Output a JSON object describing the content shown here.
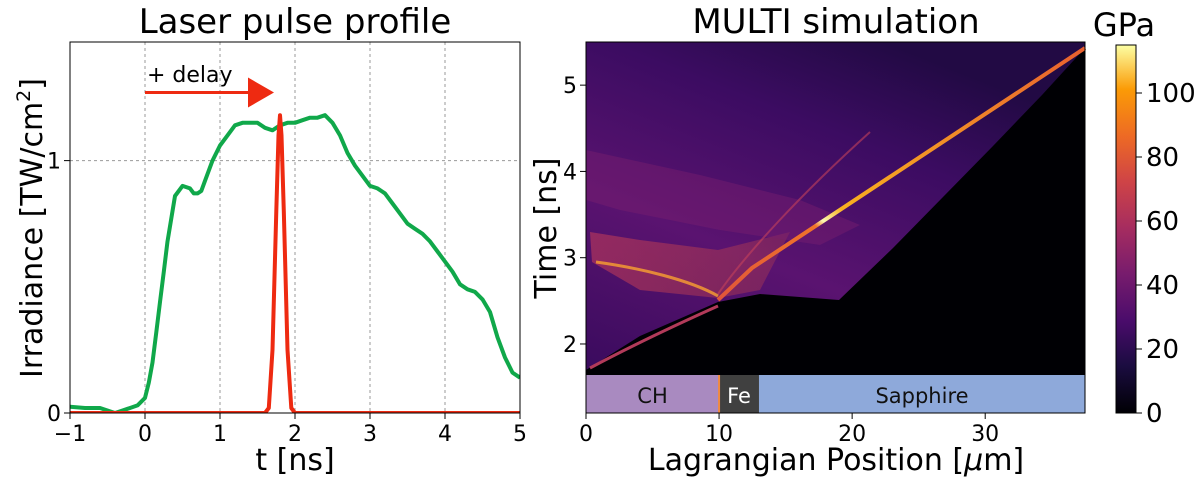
{
  "chart_data": [
    {
      "type": "line",
      "title": "Laser pulse profile",
      "xlabel": "t [ns]",
      "ylabel_main": "Irradiance [TW/cm",
      "ylabel_sup": "2",
      "ylabel_end": "]",
      "xlim": [
        -1,
        5
      ],
      "ylim": [
        0,
        1.47
      ],
      "xticks": [
        -1,
        0,
        1,
        2,
        3,
        4,
        5
      ],
      "xtick_labels": [
        "−1",
        "0",
        "1",
        "2",
        "3",
        "4",
        "5"
      ],
      "yticks": [
        0,
        1
      ],
      "ytick_labels": [
        "0",
        "1"
      ],
      "grid": true,
      "annotation": {
        "text": "+ delay",
        "arrow_from": [
          0,
          1.27
        ],
        "arrow_to": [
          1.72,
          1.27
        ],
        "color": "#ee2a11"
      },
      "series": [
        {
          "color": "#10a84a",
          "x": [
            -1.0,
            -0.8,
            -0.6,
            -0.5,
            -0.4,
            -0.3,
            -0.2,
            -0.1,
            0.0,
            0.05,
            0.1,
            0.15,
            0.2,
            0.25,
            0.3,
            0.4,
            0.5,
            0.6,
            0.65,
            0.7,
            0.75,
            0.8,
            0.9,
            1.0,
            1.1,
            1.2,
            1.3,
            1.4,
            1.5,
            1.6,
            1.7,
            1.8,
            1.9,
            2.0,
            2.1,
            2.2,
            2.3,
            2.4,
            2.5,
            2.6,
            2.7,
            2.8,
            2.9,
            3.0,
            3.1,
            3.2,
            3.3,
            3.4,
            3.5,
            3.6,
            3.7,
            3.8,
            3.9,
            4.0,
            4.1,
            4.2,
            4.3,
            4.4,
            4.5,
            4.6,
            4.7,
            4.8,
            4.9,
            5.0
          ],
          "y": [
            0.025,
            0.02,
            0.02,
            0.01,
            0.0,
            0.01,
            0.02,
            0.03,
            0.06,
            0.12,
            0.2,
            0.32,
            0.44,
            0.56,
            0.68,
            0.86,
            0.9,
            0.89,
            0.87,
            0.87,
            0.88,
            0.92,
            1.0,
            1.06,
            1.1,
            1.14,
            1.15,
            1.15,
            1.15,
            1.13,
            1.12,
            1.14,
            1.15,
            1.15,
            1.16,
            1.17,
            1.17,
            1.18,
            1.15,
            1.1,
            1.03,
            0.98,
            0.94,
            0.9,
            0.89,
            0.87,
            0.83,
            0.79,
            0.75,
            0.73,
            0.71,
            0.68,
            0.64,
            0.6,
            0.56,
            0.51,
            0.49,
            0.48,
            0.45,
            0.4,
            0.3,
            0.22,
            0.16,
            0.14
          ]
        },
        {
          "color": "#ee2a11",
          "x": [
            -1.0,
            1.6,
            1.65,
            1.7,
            1.75,
            1.78,
            1.8,
            1.82,
            1.85,
            1.9,
            1.95,
            2.0,
            5.0
          ],
          "y": [
            0.0,
            0.0,
            0.02,
            0.25,
            0.8,
            1.1,
            1.18,
            1.1,
            0.8,
            0.25,
            0.02,
            0.0,
            0.0
          ]
        }
      ]
    },
    {
      "type": "heatmap",
      "title": "MULTI simulation",
      "xlabel_main": "Lagrangian Position [",
      "xlabel_mu": "μ",
      "xlabel_end": "m]",
      "ylabel": "Time [ns]",
      "xlim": [
        0,
        37.5
      ],
      "ylim": [
        1.2,
        5.5
      ],
      "xticks": [
        0,
        10,
        20,
        30
      ],
      "xtick_labels": [
        "0",
        "10",
        "20",
        "30"
      ],
      "yticks": [
        2,
        3,
        4,
        5
      ],
      "ytick_labels": [
        "2",
        "3",
        "4",
        "5"
      ],
      "colorbar": {
        "label": "GPa",
        "range": [
          0,
          115
        ],
        "ticks": [
          0,
          20,
          40,
          60,
          80,
          100
        ],
        "tick_labels": [
          "0",
          "20",
          "40",
          "60",
          "80",
          "100"
        ],
        "colormap": "inferno"
      },
      "regions": [
        {
          "label": "CH",
          "x_start": 0,
          "x_end": 10,
          "color": "#a98ac0"
        },
        {
          "label": "Fe",
          "x_start": 10,
          "x_end": 13,
          "color": "#404040"
        },
        {
          "label": "Sapphire",
          "x_start": 13,
          "x_end": 37.5,
          "color": "#8ea9da"
        }
      ],
      "shock_front": {
        "x": [
          0,
          4,
          10,
          13,
          20,
          30,
          37.5
        ],
        "t": [
          1.7,
          1.95,
          2.45,
          2.85,
          3.6,
          4.6,
          5.4
        ],
        "pressure": [
          35,
          45,
          60,
          85,
          75,
          70,
          65
        ]
      }
    }
  ]
}
